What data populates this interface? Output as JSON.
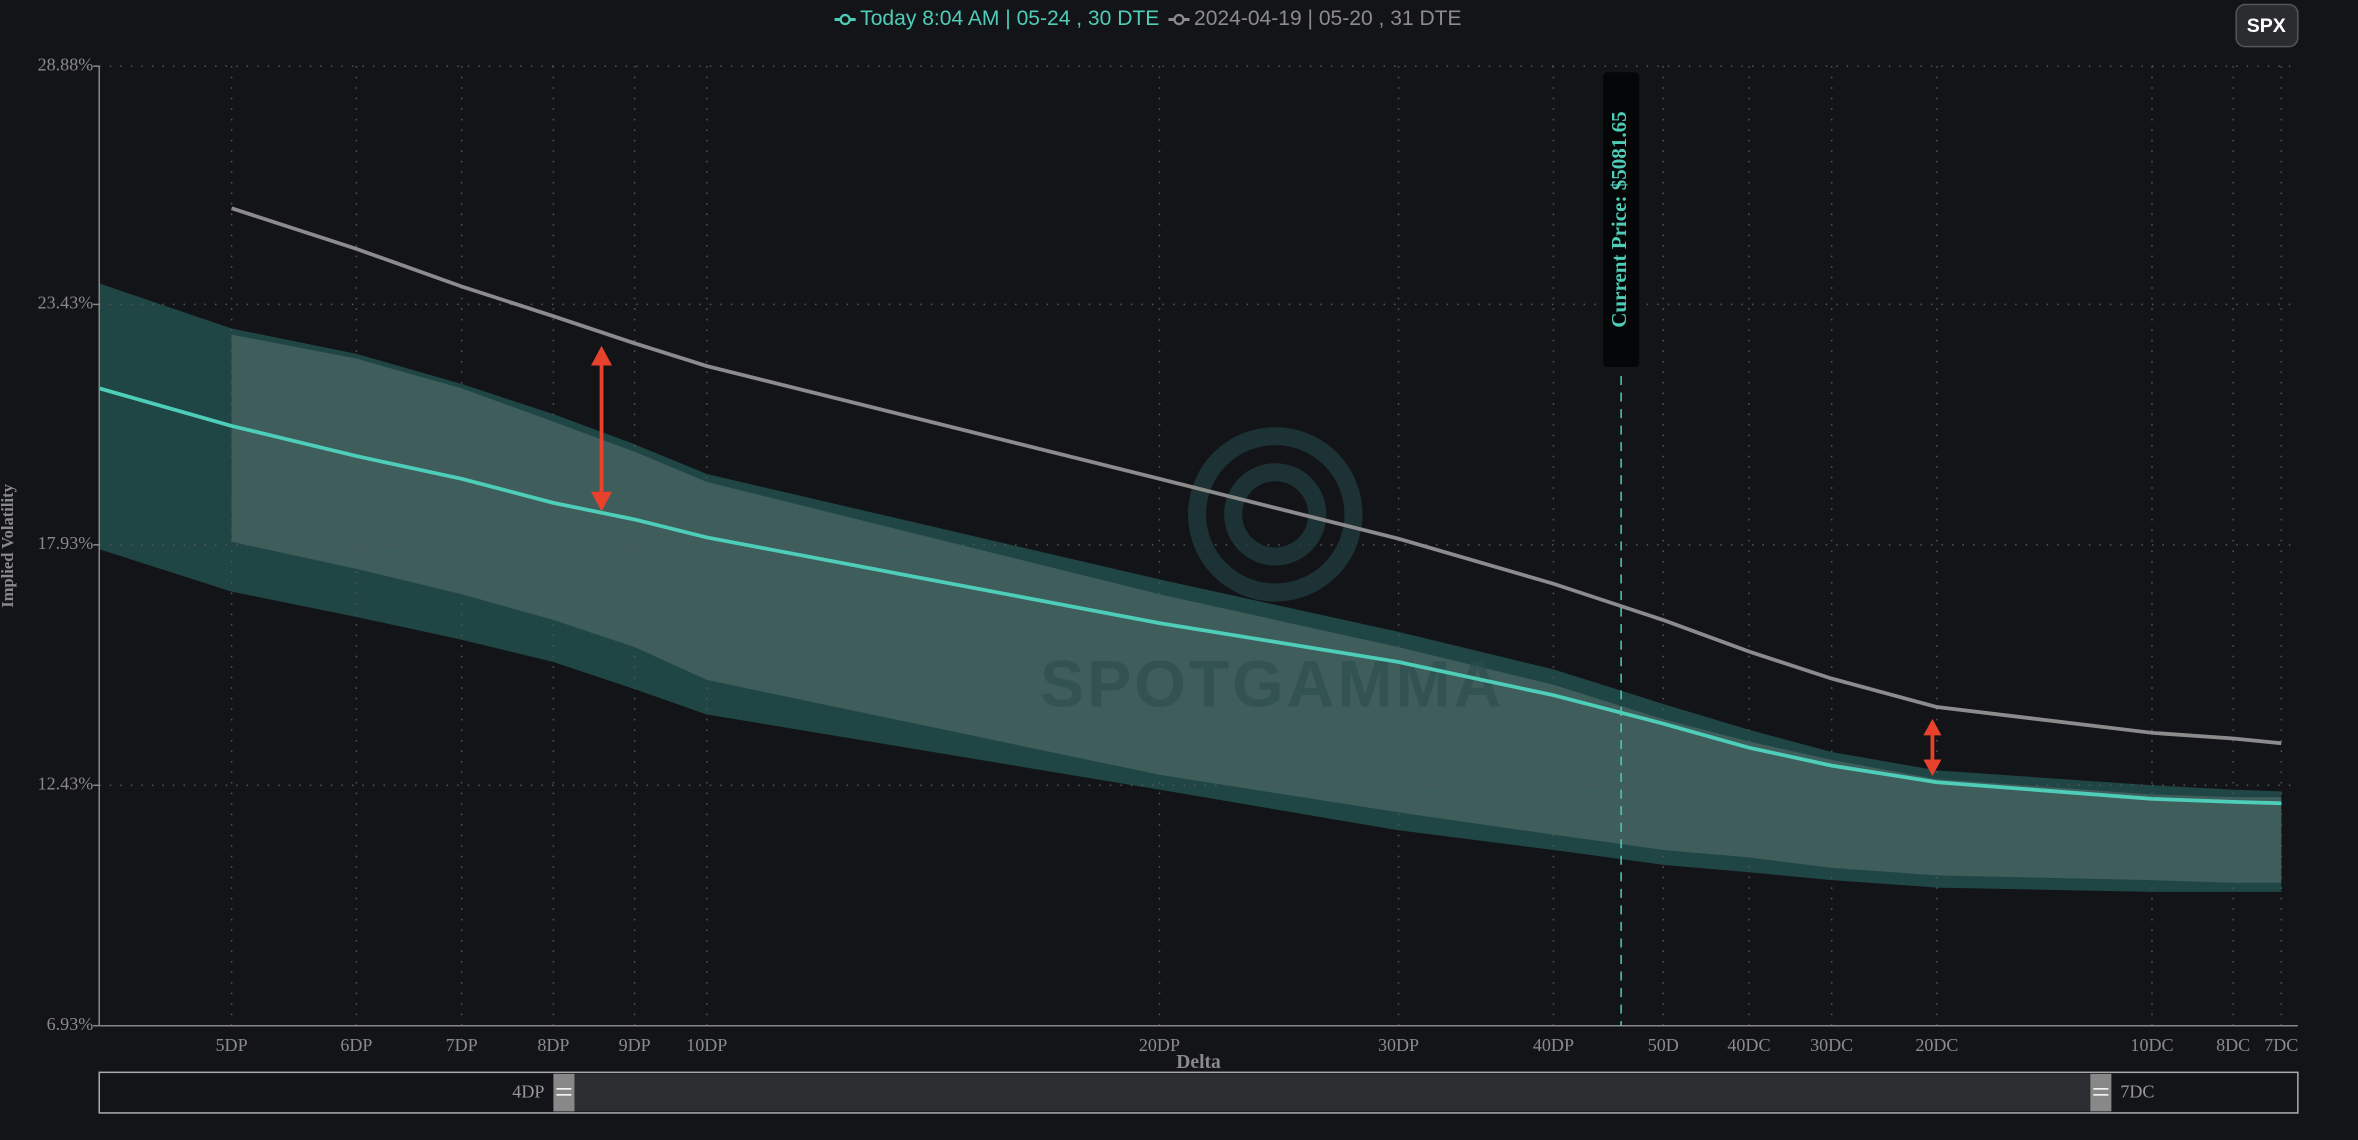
{
  "chart_data": {
    "type": "line",
    "ticker": "SPX",
    "xlabel": "Delta",
    "ylabel": "Implied Volatility",
    "annotation": "Current Price: $5081.65",
    "watermark": "SPOTGAMMA",
    "range_start": "4DP",
    "range_end": "7DC",
    "legend_position": "top",
    "grid": true,
    "categories": [
      null,
      "5DP",
      "6DP",
      "7DP",
      "8DP",
      "9DP",
      "10DP",
      "20DP",
      "30DP",
      "40DP",
      "50D",
      "40DC",
      "30DC",
      "20DC",
      "10DC",
      "8DC",
      "7DC"
    ],
    "series": [
      {
        "name": "Today 8:04 AM | 05-24 , 30 DTE",
        "color": "#4ecdb8",
        "values": [
          21.51,
          20.65,
          19.96,
          19.44,
          18.89,
          18.51,
          18.1,
          16.14,
          15.25,
          14.49,
          13.84,
          13.29,
          12.88,
          12.5,
          12.12,
          12.05,
          12.02
        ]
      },
      {
        "name": "2024-04-19 | 05-20 , 31 DTE",
        "color": "#8c8c8c",
        "values": [
          null,
          25.63,
          24.7,
          23.84,
          23.16,
          22.54,
          22.02,
          19.44,
          18.07,
          17.04,
          16.21,
          15.49,
          14.87,
          14.22,
          13.63,
          13.5,
          13.39
        ]
      }
    ],
    "bands": [
      {
        "color": "#1f4645",
        "upper": [
          23.91,
          22.88,
          22.3,
          21.61,
          20.92,
          20.23,
          19.55,
          17.14,
          15.94,
          15.08,
          14.29,
          13.7,
          13.19,
          12.77,
          12.43,
          12.33,
          12.29
        ],
        "lower": [
          17.83,
          16.86,
          16.28,
          15.76,
          15.25,
          14.63,
          14.05,
          12.33,
          11.4,
          10.95,
          10.61,
          10.44,
          10.26,
          10.09,
          9.99,
          9.99,
          9.99
        ]
      },
      {
        "color": "#3e5d5b",
        "upper": [
          null,
          22.74,
          22.19,
          21.51,
          20.75,
          20.06,
          19.37,
          16.8,
          15.59,
          14.73,
          13.94,
          13.43,
          13.01,
          12.57,
          12.22,
          12.16,
          12.16
        ],
        "lower": [
          null,
          18.0,
          17.38,
          16.8,
          16.21,
          15.59,
          14.84,
          12.67,
          11.81,
          11.3,
          10.95,
          10.78,
          10.54,
          10.37,
          10.26,
          10.2,
          10.2
        ]
      }
    ],
    "ylim": [
      6.93,
      28.88
    ],
    "yticks": [
      {
        "value": 6.93,
        "label": "6.93%"
      },
      {
        "value": 12.43,
        "label": "12.43%"
      },
      {
        "value": 17.93,
        "label": "17.93%"
      },
      {
        "value": 23.43,
        "label": "23.43%"
      },
      {
        "value": 28.88,
        "label": "28.88%"
      }
    ]
  }
}
